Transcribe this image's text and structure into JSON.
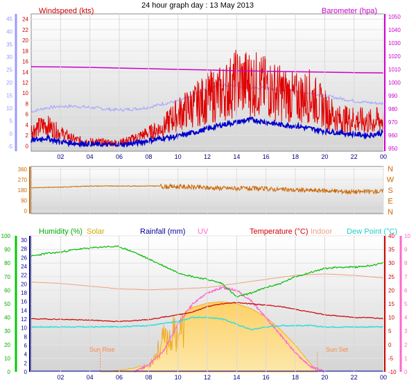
{
  "title": "24 hour graph day : 13 May 2013",
  "colors": {
    "windspeed": "#e00000",
    "gust_low": "#0000cc",
    "barometer": "#cc00cc",
    "wind_avg_light": "#a8a8ff",
    "direction": "#cc6600",
    "humidity": "#00bb00",
    "solar": "#ffb000",
    "rainfall": "#000099",
    "uv": "#ff66cc",
    "temperature": "#cc0000",
    "indoor": "#f0a080",
    "dewpoint": "#33dddd",
    "sunmark": "#ff8844"
  },
  "chart_data": [
    {
      "type": "line",
      "panel": "wind-barometer",
      "left_label": "Windspeed (kts)",
      "right_label": "Barometer (hpa)",
      "x_ticks": [
        "02",
        "04",
        "06",
        "08",
        "10",
        "12",
        "14",
        "16",
        "18",
        "20",
        "22",
        "00"
      ],
      "left_outer_ticks": [
        "-5",
        "0",
        "5",
        "10",
        "15",
        "20",
        "25",
        "30",
        "35",
        "40",
        "45"
      ],
      "left_inner_ticks": [
        "0",
        "2",
        "4",
        "6",
        "8",
        "10",
        "12",
        "14",
        "16",
        "18",
        "20",
        "22",
        "24"
      ],
      "right_ticks": [
        "950",
        "960",
        "970",
        "980",
        "990",
        "1000",
        "1010",
        "1020",
        "1030",
        "1040",
        "1050"
      ],
      "ylim_knots": [
        0,
        25
      ],
      "ylim_hpa": [
        950,
        1050
      ],
      "grid": true,
      "series": [
        {
          "key": "windspeed",
          "x": [
            0,
            1,
            2,
            3,
            3.5,
            4,
            5,
            6,
            7,
            7.5,
            8,
            8.5,
            9,
            9.5,
            10,
            11,
            12,
            13,
            14,
            15,
            16,
            17,
            18,
            19,
            20,
            21,
            22,
            23,
            24
          ],
          "values": [
            3,
            4,
            2.5,
            1.2,
            1,
            0.8,
            0.6,
            0.5,
            1.5,
            2,
            2.5,
            3,
            3.5,
            5,
            6,
            7.5,
            9,
            10,
            12,
            12,
            11,
            10,
            9,
            9.5,
            7,
            5,
            5,
            4.5,
            5
          ]
        },
        {
          "key": "gust_low",
          "x": [
            0,
            1,
            2,
            3,
            4,
            5,
            6,
            7,
            8,
            9,
            10,
            11,
            12,
            13,
            14,
            15,
            16,
            17,
            18,
            19,
            20,
            21,
            22,
            23,
            24
          ],
          "values": [
            1,
            1.5,
            0.8,
            0.5,
            0.3,
            0.2,
            0.2,
            0.5,
            1,
            1.5,
            1.8,
            2.5,
            3.2,
            4,
            4.5,
            5,
            4.5,
            4,
            3.8,
            3.3,
            2.8,
            2.5,
            2.2,
            2,
            2.5
          ]
        },
        {
          "key": "barometer",
          "x": [
            0,
            2,
            4,
            6,
            8,
            10,
            12,
            14,
            16,
            18,
            20,
            22,
            24
          ],
          "values": [
            1012,
            1011.8,
            1011.5,
            1011,
            1010.5,
            1010,
            1009.5,
            1009,
            1008.6,
            1008.2,
            1007.9,
            1007.5,
            1007.3
          ]
        },
        {
          "key": "wind_avg_light",
          "x": [
            0,
            1,
            2,
            3,
            4,
            5,
            6,
            7,
            8,
            9,
            10,
            11,
            12,
            13,
            14,
            15,
            16,
            17,
            18,
            19,
            20,
            21,
            22,
            23,
            24
          ],
          "values": [
            6.5,
            7.2,
            7.5,
            7.5,
            7.3,
            7,
            6.8,
            7,
            7.3,
            8,
            8.5,
            9.5,
            11,
            11.5,
            11.5,
            11,
            11,
            10.5,
            10.3,
            10,
            9.5,
            9,
            8.5,
            8.2,
            8
          ]
        }
      ]
    },
    {
      "type": "line",
      "panel": "wind-direction",
      "left_ticks": [
        "360",
        "270",
        "180",
        "90",
        "0"
      ],
      "right_ticks": [
        "N",
        "W",
        "S",
        "E",
        "N"
      ],
      "ylim": [
        0,
        360
      ],
      "series": [
        {
          "key": "direction",
          "x": [
            0,
            2,
            4,
            6,
            8,
            8.8,
            9,
            10,
            12,
            14,
            16,
            18,
            20,
            22,
            24
          ],
          "values": [
            200,
            205,
            215,
            215,
            215,
            215,
            210,
            210,
            200,
            195,
            190,
            180,
            175,
            165,
            170
          ]
        }
      ]
    },
    {
      "type": "line",
      "panel": "climate",
      "legend": {
        "humidity": "Humidity (%)",
        "solar": "Solar",
        "rainfall": "Rainfall (mm)",
        "uv": "UV",
        "temperature": "Temperature (°C)",
        "indoor": "Indoor",
        "dewpoint": "Dew Point (°C)"
      },
      "annotations": {
        "sunrise": "Sun Rise",
        "sunset": "Sun Set",
        "sunrise_hour": 4.7,
        "sunset_hour": 19.5
      },
      "x_ticks": [
        "02",
        "04",
        "06",
        "08",
        "10",
        "12",
        "14",
        "16",
        "18",
        "20",
        "22",
        "00"
      ],
      "humidity_ticks": [
        "0",
        "10",
        "20",
        "30",
        "40",
        "50",
        "60",
        "70",
        "80",
        "90",
        "100"
      ],
      "rain_ticks": [
        "0",
        "2",
        "4",
        "6",
        "8",
        "10",
        "12",
        "14",
        "16",
        "18",
        "20",
        "22",
        "24",
        "26",
        "28",
        "30"
      ],
      "temp_ticks": [
        "-10",
        "-5",
        "0",
        "5",
        "10",
        "15",
        "20",
        "25",
        "30",
        "35",
        "40"
      ],
      "uv_ticks": [
        "0",
        "1",
        "2",
        "3",
        "4",
        "5",
        "6",
        "7",
        "8",
        "9",
        "10"
      ],
      "series": [
        {
          "key": "humidity",
          "x": [
            0,
            1,
            2,
            3,
            4,
            5,
            6,
            7,
            8,
            9,
            10,
            11,
            12,
            13,
            14,
            15,
            16,
            17,
            18,
            19,
            20,
            21,
            22,
            23,
            24
          ],
          "values": [
            85,
            87,
            88,
            90,
            91,
            92,
            92,
            88,
            83,
            78,
            73,
            70,
            68,
            65,
            55,
            58,
            62,
            65,
            70,
            73,
            76,
            77,
            77,
            78,
            80
          ]
        },
        {
          "key": "temperature",
          "x": [
            0,
            2,
            4,
            6,
            8,
            10,
            11,
            12,
            13,
            14,
            15,
            16,
            17,
            18,
            19,
            20,
            21,
            22,
            23,
            24
          ],
          "values": [
            9.5,
            9.3,
            9,
            8.5,
            9.2,
            11,
            12,
            14,
            15,
            15.5,
            15,
            14.5,
            14,
            13,
            12,
            11,
            10.5,
            10,
            10,
            9.5
          ]
        },
        {
          "key": "indoor",
          "x": [
            0,
            2,
            4,
            6,
            8,
            10,
            12,
            14,
            16,
            18,
            20,
            22,
            24
          ],
          "values": [
            23,
            22.5,
            21.5,
            20.5,
            20.2,
            20.5,
            21,
            22.5,
            24,
            25.5,
            26,
            25.5,
            24.5
          ]
        },
        {
          "key": "dewpoint",
          "x": [
            0,
            2,
            4,
            6,
            8,
            10,
            11,
            12,
            13,
            14,
            15,
            16,
            17,
            18,
            19,
            20,
            21,
            22,
            23,
            24
          ],
          "values": [
            6.5,
            6.5,
            6.5,
            6.6,
            7,
            8.5,
            10,
            10,
            9.5,
            7.5,
            5.5,
            6.5,
            7,
            7,
            7,
            6.5,
            6.5,
            6.5,
            6.5,
            6.5
          ]
        },
        {
          "key": "solar_norm",
          "x": [
            4.7,
            6,
            7,
            8,
            8.5,
            9,
            10,
            11,
            12,
            13,
            14,
            15,
            16,
            17,
            18,
            19,
            19.5
          ],
          "values": [
            0,
            0.02,
            0.05,
            0.12,
            0.35,
            0.6,
            0.8,
            0.92,
            0.98,
            1,
            0.97,
            0.9,
            0.78,
            0.6,
            0.38,
            0.12,
            0
          ]
        },
        {
          "key": "uv",
          "x": [
            7,
            8,
            9,
            10,
            11,
            12,
            13,
            14,
            15,
            16,
            17,
            18,
            19,
            20
          ],
          "values": [
            0,
            0.5,
            1.5,
            3.5,
            5,
            5.8,
            6.2,
            6,
            5.2,
            4,
            2.7,
            1.4,
            0.4,
            0
          ]
        }
      ]
    }
  ]
}
